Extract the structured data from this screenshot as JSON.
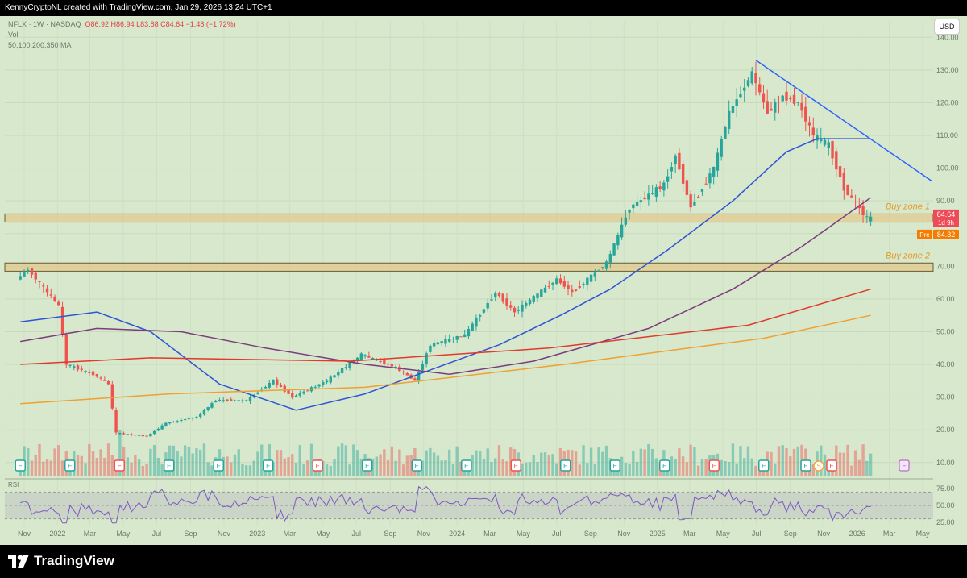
{
  "header": {
    "attribution": "KennyCryptoNL created with TradingView.com, Jan 29, 2026 13:24 UTC+1"
  },
  "legend": {
    "symbol": "NFLX · 1W · NASDAQ",
    "ohlc": "O86.92  H86.94  L83.88  C84.64  −1.48 (−1.72%)",
    "volume_label": "Vol",
    "ma_label": "50,100,200,350 MA"
  },
  "currency_button": "USD",
  "price_tags": {
    "last": "84.64",
    "countdown": "1d 9h",
    "pre_label": "Pre",
    "pre_value": "84.32"
  },
  "zones": [
    {
      "label": "Buy zone 1",
      "low": 83.5,
      "high": 86.0
    },
    {
      "label": "Buy zone 2",
      "low": 68.5,
      "high": 71.0
    }
  ],
  "footer": {
    "brand": "TradingView"
  },
  "colors": {
    "up": "#26a69a",
    "down": "#ef5350",
    "ma50": "#2e54d4",
    "ma100": "#7b3c7c",
    "ma200": "#e0392d",
    "ma350": "#f0a030",
    "trendline": "#2962ff",
    "zone": "#e8c07a",
    "rsi": "#7e57c2"
  },
  "chart_data": {
    "type": "candlestick",
    "interval": "1W",
    "price_axis": {
      "ticks": [
        "10.00",
        "20.00",
        "30.00",
        "40.00",
        "50.00",
        "60.00",
        "70.00",
        "80.00",
        "90.00",
        "100.00",
        "110.00",
        "120.00",
        "130.00",
        "140.00"
      ],
      "ylim": [
        6,
        145
      ]
    },
    "time_axis": {
      "ticks": [
        "Nov",
        "2022",
        "Mar",
        "May",
        "Jul",
        "Sep",
        "Nov",
        "2023",
        "Mar",
        "May",
        "Jul",
        "Sep",
        "Nov",
        "2024",
        "Mar",
        "May",
        "Jul",
        "Sep",
        "Nov",
        "2025",
        "Mar",
        "May",
        "Jul",
        "Sep",
        "Nov",
        "2026",
        "Mar",
        "May"
      ],
      "start": "2021-11",
      "end": "2026-05"
    },
    "rsi_axis": {
      "ticks": [
        "75.00",
        "50.00",
        "25.00"
      ],
      "ylim": [
        20,
        80
      ]
    },
    "price_path": [
      [
        "2021-10-25",
        66
      ],
      [
        "2021-11-15",
        69
      ],
      [
        "2021-12-20",
        62
      ],
      [
        "2022-01-10",
        58
      ],
      [
        "2022-01-24",
        40
      ],
      [
        "2022-03-14",
        37
      ],
      [
        "2022-04-11",
        34
      ],
      [
        "2022-04-25",
        19
      ],
      [
        "2022-06-20",
        18
      ],
      [
        "2022-07-25",
        22
      ],
      [
        "2022-09-19",
        24
      ],
      [
        "2022-10-24",
        29
      ],
      [
        "2022-12-19",
        29
      ],
      [
        "2023-02-06",
        35
      ],
      [
        "2023-03-13",
        30
      ],
      [
        "2023-05-15",
        35
      ],
      [
        "2023-07-17",
        43
      ],
      [
        "2023-09-18",
        39
      ],
      [
        "2023-10-23",
        35
      ],
      [
        "2023-11-20",
        46
      ],
      [
        "2024-01-22",
        49
      ],
      [
        "2024-03-18",
        62
      ],
      [
        "2024-04-22",
        56
      ],
      [
        "2024-07-08",
        66
      ],
      [
        "2024-08-05",
        62
      ],
      [
        "2024-10-07",
        71
      ],
      [
        "2024-11-18",
        88
      ],
      [
        "2024-12-16",
        91
      ],
      [
        "2025-01-20",
        95
      ],
      [
        "2025-02-10",
        104
      ],
      [
        "2025-03-10",
        88
      ],
      [
        "2025-04-21",
        100
      ],
      [
        "2025-05-19",
        117
      ],
      [
        "2025-06-30",
        129
      ],
      [
        "2025-07-28",
        117
      ],
      [
        "2025-08-25",
        122
      ],
      [
        "2025-09-22",
        120
      ],
      [
        "2025-10-20",
        110
      ],
      [
        "2025-11-17",
        107
      ],
      [
        "2025-12-15",
        94
      ],
      [
        "2026-01-05",
        89
      ],
      [
        "2026-01-26",
        84.64
      ]
    ],
    "moving_averages": [
      {
        "name": "50",
        "points": [
          [
            "2021-10-25",
            53
          ],
          [
            "2022-03-14",
            56
          ],
          [
            "2022-06-20",
            50
          ],
          [
            "2022-10-24",
            34
          ],
          [
            "2023-03-13",
            26
          ],
          [
            "2023-07-17",
            31
          ],
          [
            "2023-10-23",
            37
          ],
          [
            "2024-03-18",
            46
          ],
          [
            "2024-07-08",
            55
          ],
          [
            "2024-10-07",
            63
          ],
          [
            "2025-01-20",
            75
          ],
          [
            "2025-05-19",
            90
          ],
          [
            "2025-08-25",
            105
          ],
          [
            "2025-10-20",
            109
          ],
          [
            "2026-01-26",
            109
          ]
        ]
      },
      {
        "name": "100",
        "points": [
          [
            "2021-10-25",
            47
          ],
          [
            "2022-03-14",
            51
          ],
          [
            "2022-08-15",
            50
          ],
          [
            "2023-01-16",
            45
          ],
          [
            "2023-07-17",
            40
          ],
          [
            "2023-12-18",
            37
          ],
          [
            "2024-05-20",
            41
          ],
          [
            "2024-12-16",
            51
          ],
          [
            "2025-05-19",
            63
          ],
          [
            "2025-09-22",
            76
          ],
          [
            "2026-01-26",
            91
          ]
        ]
      },
      {
        "name": "200",
        "points": [
          [
            "2021-10-25",
            40
          ],
          [
            "2022-06-20",
            42
          ],
          [
            "2023-06-19",
            41
          ],
          [
            "2024-06-17",
            45
          ],
          [
            "2025-06-16",
            52
          ],
          [
            "2026-01-26",
            63
          ]
        ]
      },
      {
        "name": "350",
        "points": [
          [
            "2021-10-25",
            28
          ],
          [
            "2022-07-25",
            31
          ],
          [
            "2023-07-17",
            33
          ],
          [
            "2024-07-15",
            40
          ],
          [
            "2025-07-14",
            48
          ],
          [
            "2026-01-26",
            55
          ]
        ]
      }
    ],
    "trendline": [
      [
        "2025-06-30",
        133
      ],
      [
        "2026-05-18",
        96
      ]
    ],
    "earnings_markers": [
      "E",
      "E",
      "E",
      "E",
      "E",
      "E",
      "E",
      "E",
      "E",
      "E",
      "E",
      "E",
      "E",
      "E",
      "E",
      "E",
      "E",
      "S",
      "E",
      "E"
    ]
  }
}
